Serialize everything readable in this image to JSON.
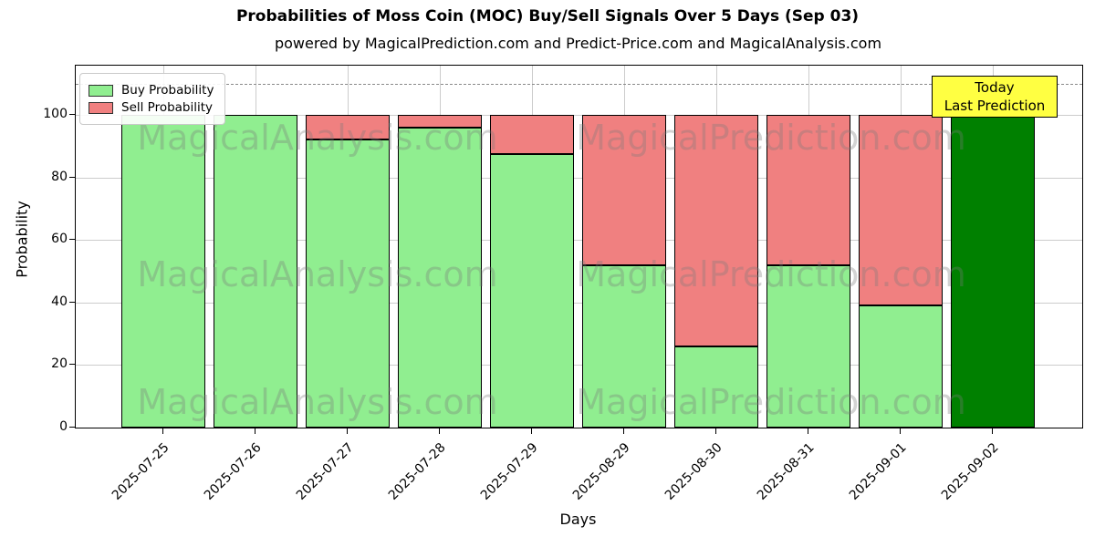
{
  "chart_data": {
    "type": "bar",
    "stacked": true,
    "title": "Probabilities of Moss Coin (MOC) Buy/Sell Signals Over 5 Days (Sep 03)",
    "subtitle": "powered by MagicalPrediction.com and Predict-Price.com and MagicalAnalysis.com",
    "xlabel": "Days",
    "ylabel": "Probability",
    "categories": [
      "2025-07-25",
      "2025-07-26",
      "2025-07-27",
      "2025-07-28",
      "2025-07-29",
      "2025-08-29",
      "2025-08-30",
      "2025-08-31",
      "2025-09-01",
      "2025-09-02"
    ],
    "series": [
      {
        "name": "Buy Probability",
        "color": "#90EE90",
        "values": [
          100,
          100,
          92,
          96,
          87.5,
          52,
          26,
          52,
          39,
          100
        ]
      },
      {
        "name": "Sell Probability",
        "color": "#F08080",
        "values": [
          0,
          0,
          8,
          4,
          12.5,
          48,
          74,
          48,
          61,
          0
        ]
      }
    ],
    "today_bar": {
      "category": "2025-09-02",
      "index": 9,
      "color": "#008000"
    },
    "yticks": [
      0,
      20,
      40,
      60,
      80,
      100
    ],
    "ylim": [
      0,
      115.7
    ],
    "grid": true,
    "legend_position": "upper-left",
    "threshold_line": {
      "value": 110,
      "style": "dashed",
      "color": "#8a8a8a"
    },
    "annotation": {
      "line1": "Today",
      "line2": "Last Prediction",
      "bg_color": "#FFFF42"
    },
    "watermarks": {
      "left_text": "MagicalAnalysis.com",
      "right_text": "MagicalPrediction.com"
    }
  }
}
